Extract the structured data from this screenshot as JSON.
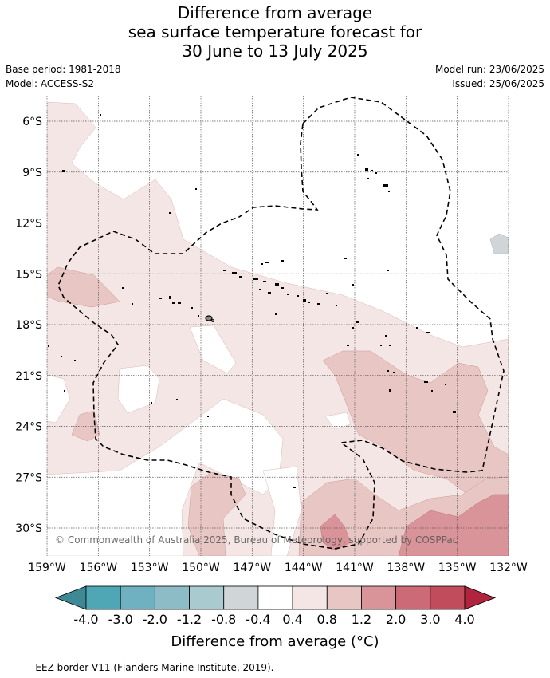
{
  "title": {
    "line1": "Difference from average",
    "line2": "sea surface temperature forecast for",
    "line3": "30 June to 13 July 2025"
  },
  "meta": {
    "base_period": "Base period: 1981-2018",
    "model": "Model: ACCESS-S2",
    "model_run": "Model run: 23/06/2025",
    "issued": "Issued: 25/06/2025"
  },
  "map": {
    "lat_labels": [
      "6°S",
      "9°S",
      "12°S",
      "15°S",
      "18°S",
      "21°S",
      "24°S",
      "27°S",
      "30°S"
    ],
    "lon_labels": [
      "159°W",
      "156°W",
      "153°W",
      "150°W",
      "147°W",
      "144°W",
      "141°W",
      "138°W",
      "135°W",
      "132°W"
    ],
    "copyright": "© Commonwealth of Australia 2025, Bureau of Meteorology, supported by COSPPac"
  },
  "colorbar": {
    "colors": [
      "#3d8a96",
      "#4fa7b6",
      "#6fb1c0",
      "#8dbcc6",
      "#a9cbcf",
      "#d0d6d7",
      "#ffffff",
      "#f4e6e5",
      "#e8c6c4",
      "#d99499",
      "#cc6a78",
      "#c04c5c",
      "#b0243d"
    ],
    "tick_labels": [
      "-4.0",
      "-3.0",
      "-2.0",
      "-1.2",
      "-0.8",
      "-0.4",
      "0.4",
      "0.8",
      "1.2",
      "2.0",
      "3.0",
      "4.0"
    ],
    "label": "Difference from average (°C)"
  },
  "footnote": "--  --  -- EEZ border V11 (Flanders Marine Institute, 2019)."
}
